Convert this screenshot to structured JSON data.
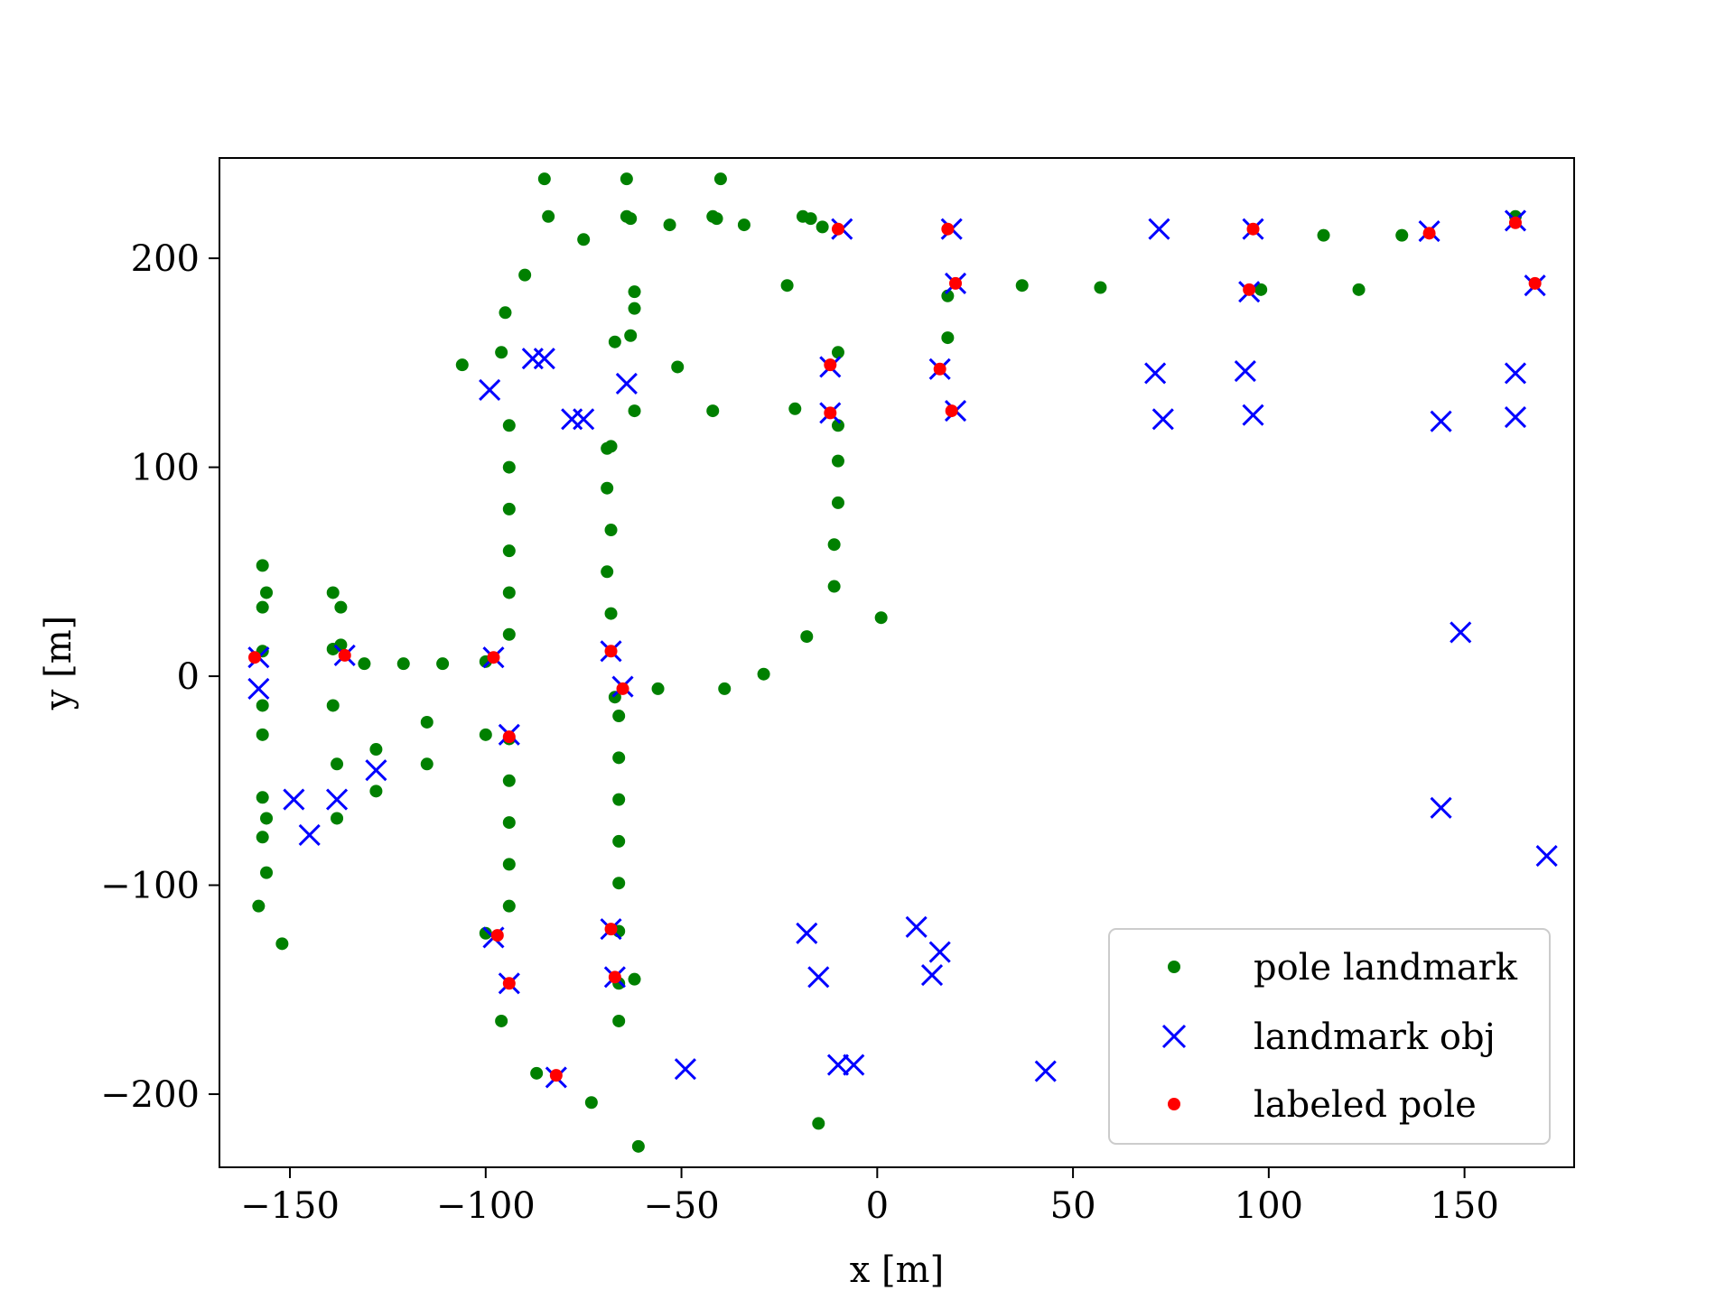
{
  "chart_data": {
    "type": "scatter",
    "title": "",
    "xlabel": "x [m]",
    "ylabel": "y [m]",
    "xlim": [
      -168,
      178
    ],
    "ylim": [
      -235,
      248
    ],
    "x_ticks": [
      {
        "value": -150,
        "label": "−150"
      },
      {
        "value": -100,
        "label": "−100"
      },
      {
        "value": -50,
        "label": "−50"
      },
      {
        "value": 0,
        "label": "0"
      },
      {
        "value": 50,
        "label": "50"
      },
      {
        "value": 100,
        "label": "100"
      },
      {
        "value": 150,
        "label": "150"
      }
    ],
    "y_ticks": [
      {
        "value": -200,
        "label": "−200"
      },
      {
        "value": -100,
        "label": "−100"
      },
      {
        "value": 0,
        "label": "0"
      },
      {
        "value": 100,
        "label": "100"
      },
      {
        "value": 200,
        "label": "200"
      }
    ],
    "grid": false,
    "legend_position": "lower-right",
    "series": [
      {
        "name": "pole landmark",
        "marker": "dot",
        "color": "#008000",
        "points": [
          [
            -85,
            238
          ],
          [
            -64,
            238
          ],
          [
            -40,
            238
          ],
          [
            -84,
            220
          ],
          [
            -64,
            220
          ],
          [
            -63,
            219
          ],
          [
            -53,
            216
          ],
          [
            -42,
            220
          ],
          [
            -41,
            219
          ],
          [
            -34,
            216
          ],
          [
            -75,
            209
          ],
          [
            -19,
            220
          ],
          [
            -17,
            219
          ],
          [
            -14,
            215
          ],
          [
            -90,
            192
          ],
          [
            -23,
            187
          ],
          [
            -62,
            184
          ],
          [
            -95,
            174
          ],
          [
            -62,
            176
          ],
          [
            -63,
            163
          ],
          [
            -67,
            160
          ],
          [
            -96,
            155
          ],
          [
            -106,
            149
          ],
          [
            -51,
            148
          ],
          [
            -62,
            127
          ],
          [
            -42,
            127
          ],
          [
            -21,
            128
          ],
          [
            -10,
            155
          ],
          [
            -10,
            120
          ],
          [
            -94,
            120
          ],
          [
            -94,
            100
          ],
          [
            -68,
            110
          ],
          [
            -69,
            109
          ],
          [
            -10,
            103
          ],
          [
            -94,
            80
          ],
          [
            -69,
            90
          ],
          [
            -10,
            83
          ],
          [
            -94,
            60
          ],
          [
            -68,
            70
          ],
          [
            -11,
            63
          ],
          [
            -94,
            40
          ],
          [
            -69,
            50
          ],
          [
            -11,
            43
          ],
          [
            -94,
            20
          ],
          [
            -68,
            30
          ],
          [
            1,
            28
          ],
          [
            -18,
            19
          ],
          [
            -157,
            53
          ],
          [
            -157,
            33
          ],
          [
            -156,
            40
          ],
          [
            -139,
            40
          ],
          [
            -137,
            33
          ],
          [
            -157,
            12
          ],
          [
            -139,
            13
          ],
          [
            -137,
            15
          ],
          [
            -131,
            6
          ],
          [
            -121,
            6
          ],
          [
            -111,
            6
          ],
          [
            -100,
            7
          ],
          [
            -29,
            1
          ],
          [
            -56,
            -6
          ],
          [
            -39,
            -6
          ],
          [
            -67,
            -10
          ],
          [
            -157,
            -14
          ],
          [
            -139,
            -14
          ],
          [
            -66,
            -19
          ],
          [
            -157,
            -28
          ],
          [
            -100,
            -28
          ],
          [
            -115,
            -22
          ],
          [
            -128,
            -35
          ],
          [
            -94,
            -30
          ],
          [
            -138,
            -42
          ],
          [
            -115,
            -42
          ],
          [
            -66,
            -39
          ],
          [
            -128,
            -55
          ],
          [
            -94,
            -50
          ],
          [
            -157,
            -58
          ],
          [
            -66,
            -59
          ],
          [
            -156,
            -68
          ],
          [
            -138,
            -68
          ],
          [
            -94,
            -70
          ],
          [
            -157,
            -77
          ],
          [
            -66,
            -79
          ],
          [
            -156,
            -94
          ],
          [
            -94,
            -90
          ],
          [
            -158,
            -110
          ],
          [
            -66,
            -99
          ],
          [
            -94,
            -110
          ],
          [
            -152,
            -128
          ],
          [
            -100,
            -123
          ],
          [
            -66,
            -122
          ],
          [
            -66,
            -147
          ],
          [
            -62,
            -145
          ],
          [
            -96,
            -165
          ],
          [
            -66,
            -165
          ],
          [
            -87,
            -190
          ],
          [
            -73,
            -204
          ],
          [
            -61,
            -225
          ],
          [
            -15,
            -214
          ],
          [
            18,
            182
          ],
          [
            18,
            162
          ],
          [
            37,
            187
          ],
          [
            57,
            186
          ],
          [
            98,
            185
          ],
          [
            114,
            211
          ],
          [
            123,
            185
          ],
          [
            134,
            211
          ],
          [
            163,
            220
          ]
        ]
      },
      {
        "name": "landmark obj",
        "marker": "x",
        "color": "#0000ff",
        "points": [
          [
            -158,
            9
          ],
          [
            -158,
            -6
          ],
          [
            -136,
            10
          ],
          [
            -98,
            9
          ],
          [
            -94,
            -28
          ],
          [
            -149,
            -59
          ],
          [
            -145,
            -76
          ],
          [
            -138,
            -59
          ],
          [
            -128,
            -45
          ],
          [
            -99,
            137
          ],
          [
            -88,
            152
          ],
          [
            -85,
            152
          ],
          [
            -78,
            123
          ],
          [
            -75,
            123
          ],
          [
            -64,
            140
          ],
          [
            -68,
            12
          ],
          [
            -65,
            -5
          ],
          [
            -98,
            -125
          ],
          [
            -94,
            -147
          ],
          [
            -68,
            -121
          ],
          [
            -67,
            -144
          ],
          [
            -82,
            -192
          ],
          [
            -49,
            -188
          ],
          [
            -9,
            214
          ],
          [
            -12,
            148
          ],
          [
            -12,
            126
          ],
          [
            19,
            214
          ],
          [
            16,
            147
          ],
          [
            20,
            127
          ],
          [
            20,
            188
          ],
          [
            -18,
            -123
          ],
          [
            -15,
            -144
          ],
          [
            -10,
            -186
          ],
          [
            -6,
            -186
          ],
          [
            10,
            -120
          ],
          [
            14,
            -143
          ],
          [
            16,
            -132
          ],
          [
            43,
            -189
          ],
          [
            72,
            214
          ],
          [
            71,
            145
          ],
          [
            73,
            123
          ],
          [
            94,
            146
          ],
          [
            96,
            125
          ],
          [
            96,
            214
          ],
          [
            95,
            184
          ],
          [
            141,
            213
          ],
          [
            144,
            122
          ],
          [
            144,
            -63
          ],
          [
            149,
            21
          ],
          [
            163,
            218
          ],
          [
            163,
            145
          ],
          [
            163,
            124
          ],
          [
            168,
            187
          ],
          [
            171,
            -86
          ]
        ]
      },
      {
        "name": "labeled pole",
        "marker": "dot",
        "color": "#ff0000",
        "points": [
          [
            -159,
            9
          ],
          [
            -136,
            10
          ],
          [
            -98,
            9
          ],
          [
            -94,
            -29
          ],
          [
            -68,
            12
          ],
          [
            -65,
            -6
          ],
          [
            -97,
            -124
          ],
          [
            -94,
            -147
          ],
          [
            -68,
            -121
          ],
          [
            -67,
            -144
          ],
          [
            -82,
            -191
          ],
          [
            -10,
            214
          ],
          [
            -12,
            149
          ],
          [
            -12,
            126
          ],
          [
            18,
            214
          ],
          [
            16,
            147
          ],
          [
            19,
            127
          ],
          [
            20,
            188
          ],
          [
            96,
            214
          ],
          [
            95,
            185
          ],
          [
            141,
            212
          ],
          [
            163,
            217
          ],
          [
            168,
            188
          ]
        ]
      }
    ]
  }
}
